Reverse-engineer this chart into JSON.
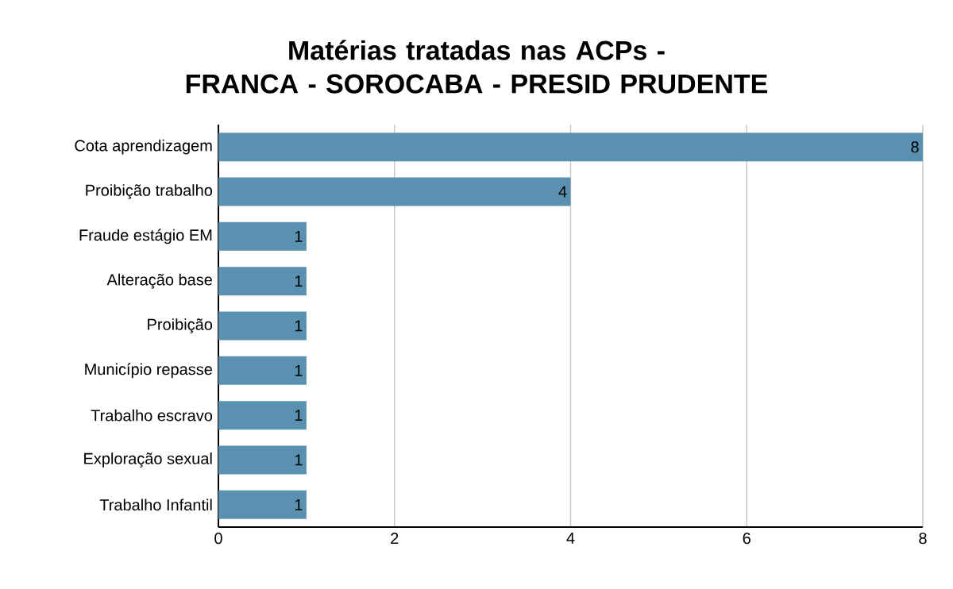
{
  "chart_data": {
    "type": "bar",
    "orientation": "horizontal",
    "title": "Matérias tratadas nas ACPs -\nFRANCA - SOROCABA - PRESID PRUDENTE",
    "categories": [
      "Cota aprendizagem",
      "Proibição trabalho",
      "Fraude estágio EM",
      "Alteração base",
      "Proibição",
      "Município repasse",
      "Trabalho escravo",
      "Exploração sexual",
      "Trabalho Infantil"
    ],
    "values": [
      8,
      4,
      1,
      1,
      1,
      1,
      1,
      1,
      1
    ],
    "color": "#5a91b0",
    "xlim": [
      0,
      8
    ],
    "xticks": [
      0,
      2,
      4,
      6,
      8
    ],
    "grid": "x",
    "data_labels": true
  }
}
